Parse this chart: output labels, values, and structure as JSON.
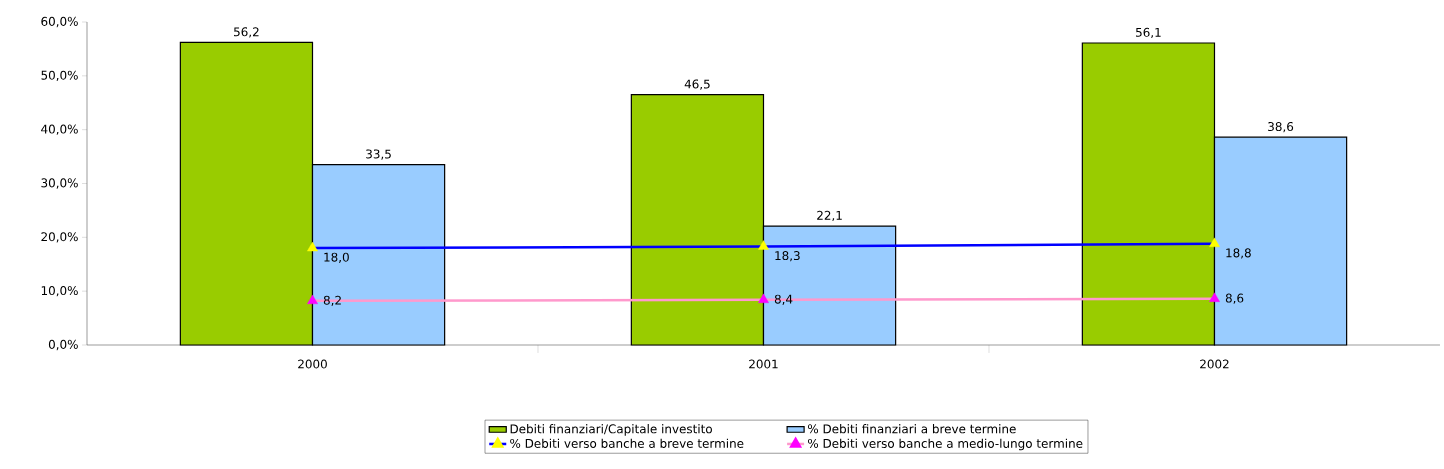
{
  "chart_data": {
    "type": "bar",
    "categories": [
      "2000",
      "2001",
      "2002"
    ],
    "ylim": [
      0,
      60
    ],
    "yticks": [
      {
        "value": 0,
        "label": "0,0%"
      },
      {
        "value": 10,
        "label": "10,0%"
      },
      {
        "value": 20,
        "label": "20,0%"
      },
      {
        "value": 30,
        "label": "30,0%"
      },
      {
        "value": 40,
        "label": "40,0%"
      },
      {
        "value": 50,
        "label": "50,0%"
      },
      {
        "value": 60,
        "label": "60,0%"
      }
    ],
    "legend": "bottom",
    "marker": "triangle",
    "series": [
      {
        "name": "Debiti finanziari/Capitale investito",
        "type": "bar",
        "color": "#99cc00",
        "values": [
          56.2,
          46.5,
          56.1
        ],
        "value_labels": [
          "56,2",
          "46,5",
          "56,1"
        ]
      },
      {
        "name": "% Debiti finanziari a breve termine",
        "type": "bar",
        "color": "#99ccff",
        "values": [
          33.5,
          22.1,
          38.6
        ],
        "value_labels": [
          "33,5",
          "22,1",
          "38,6"
        ]
      },
      {
        "name": "% Debiti verso banche a breve termine",
        "type": "line",
        "color": "#0000ff",
        "colors": [
          "#ffff00",
          "#ffff00",
          "#ffff00"
        ],
        "values": [
          18.0,
          18.3,
          18.8
        ],
        "value_labels": [
          "18,0",
          "18,3",
          "18,8"
        ]
      },
      {
        "name": "% Debiti verso banche a medio-lungo termine",
        "type": "line",
        "color": "#ff99cc",
        "colors": [
          "#ff00ff",
          "#ff00ff",
          "#ff00ff"
        ],
        "values": [
          8.2,
          8.4,
          8.6
        ],
        "value_labels": [
          "8,2",
          "8,4",
          "8,6"
        ]
      }
    ]
  }
}
